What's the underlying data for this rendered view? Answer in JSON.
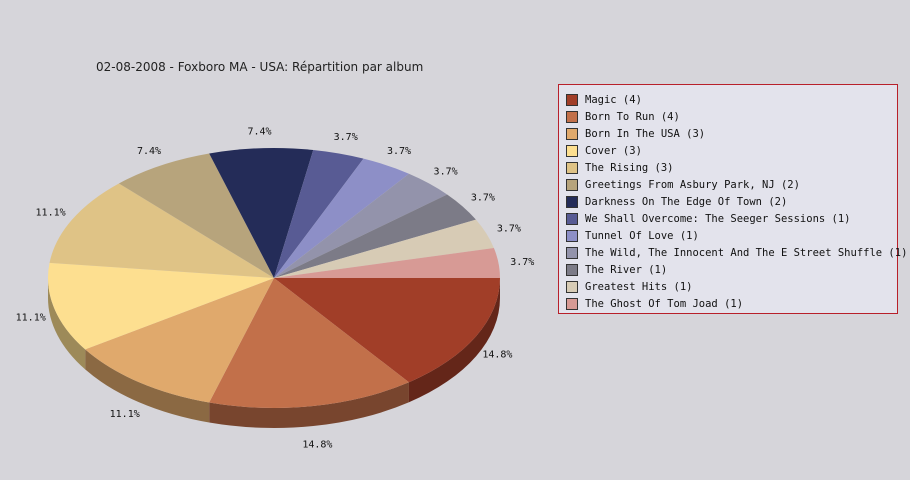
{
  "chart_data": {
    "type": "pie",
    "title": "02-08-2008 - Foxboro MA - USA:  Répartition par album",
    "slices": [
      {
        "label": "Magic (4)",
        "value": 4,
        "pct": "14.8%",
        "color": "#a13e28"
      },
      {
        "label": "Born To Run (4)",
        "value": 4,
        "pct": "14.8%",
        "color": "#c2704a"
      },
      {
        "label": "Born In The USA (3)",
        "value": 3,
        "pct": "11.1%",
        "color": "#e0a96c"
      },
      {
        "label": "Cover (3)",
        "value": 3,
        "pct": "11.1%",
        "color": "#fddf90"
      },
      {
        "label": "The Rising (3)",
        "value": 3,
        "pct": "11.1%",
        "color": "#dfc386"
      },
      {
        "label": "Greetings From Asbury Park, NJ (2)",
        "value": 2,
        "pct": "7.4%",
        "color": "#b7a47c"
      },
      {
        "label": "Darkness On The Edge Of Town (2)",
        "value": 2,
        "pct": "7.4%",
        "color": "#242c58"
      },
      {
        "label": "We Shall Overcome: The Seeger Sessions (1)",
        "value": 1,
        "pct": "3.7%",
        "color": "#585b94"
      },
      {
        "label": "Tunnel Of Love (1)",
        "value": 1,
        "pct": "3.7%",
        "color": "#8d8fc7"
      },
      {
        "label": "The Wild, The Innocent And The E Street Shuffle (1)",
        "value": 1,
        "pct": "3.7%",
        "color": "#9393ab"
      },
      {
        "label": "The River (1)",
        "value": 1,
        "pct": "3.7%",
        "color": "#7c7b87"
      },
      {
        "label": "Greatest Hits (1)",
        "value": 1,
        "pct": "3.7%",
        "color": "#d7cbb5"
      },
      {
        "label": "The Ghost Of Tom Joad (1)",
        "value": 1,
        "pct": "3.7%",
        "color": "#d79a95"
      }
    ],
    "legend_position": "right",
    "style": "3d"
  }
}
